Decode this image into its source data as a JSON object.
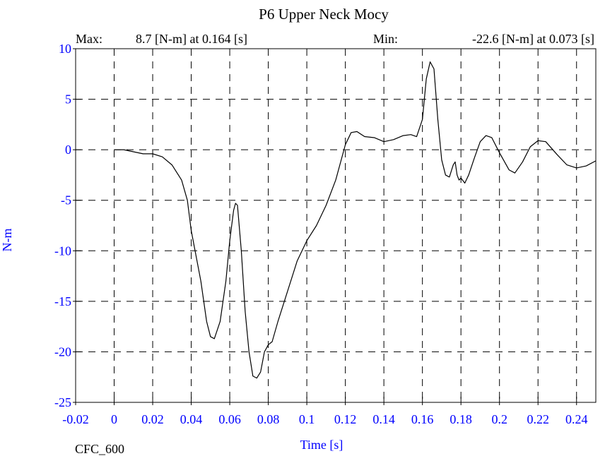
{
  "chart_data": {
    "type": "line",
    "title": "P6 Upper Neck Mocy",
    "max_label": "Max:",
    "max_text": "8.7 [N-m] at 0.164 [s]",
    "min_label": "Min:",
    "min_text": "-22.6 [N-m] at 0.073 [s]",
    "xlabel": "Time [s]",
    "ylabel": "N-m",
    "footer": "CFC_600",
    "color": "#000000",
    "grid": true,
    "xlim": [
      -0.02,
      0.25
    ],
    "ylim": [
      -25,
      10
    ],
    "xticks": [
      -0.02,
      0,
      0.02,
      0.04,
      0.06,
      0.08,
      0.1,
      0.12,
      0.14,
      0.16,
      0.18,
      0.2,
      0.22,
      0.24
    ],
    "yticks": [
      10,
      5,
      0,
      -5,
      -10,
      -15,
      -20,
      -25
    ],
    "x": [
      0,
      0.005,
      0.01,
      0.015,
      0.02,
      0.025,
      0.03,
      0.035,
      0.038,
      0.04,
      0.045,
      0.048,
      0.05,
      0.052,
      0.055,
      0.058,
      0.06,
      0.062,
      0.063,
      0.064,
      0.066,
      0.068,
      0.07,
      0.072,
      0.074,
      0.076,
      0.078,
      0.08,
      0.082,
      0.085,
      0.09,
      0.095,
      0.1,
      0.105,
      0.11,
      0.115,
      0.12,
      0.123,
      0.126,
      0.13,
      0.135,
      0.14,
      0.145,
      0.15,
      0.154,
      0.157,
      0.16,
      0.162,
      0.164,
      0.166,
      0.168,
      0.17,
      0.172,
      0.174,
      0.176,
      0.177,
      0.178,
      0.179,
      0.18,
      0.182,
      0.184,
      0.187,
      0.19,
      0.193,
      0.196,
      0.2,
      0.205,
      0.208,
      0.212,
      0.216,
      0.22,
      0.224,
      0.23,
      0.235,
      0.24,
      0.245,
      0.25
    ],
    "values": [
      0,
      0,
      -0.2,
      -0.4,
      -0.4,
      -0.7,
      -1.5,
      -3,
      -5,
      -8,
      -13,
      -17,
      -18.5,
      -18.7,
      -17,
      -13,
      -9,
      -6,
      -5.3,
      -5.5,
      -10,
      -16,
      -20,
      -22.4,
      -22.6,
      -22,
      -20,
      -19.3,
      -19,
      -17,
      -14,
      -11,
      -9,
      -7.5,
      -5.5,
      -3,
      0.5,
      1.7,
      1.8,
      1.3,
      1.2,
      0.8,
      1.0,
      1.4,
      1.5,
      1.3,
      3,
      7,
      8.7,
      8,
      3,
      -1,
      -2.5,
      -2.7,
      -1.5,
      -1.2,
      -2.5,
      -3,
      -2.8,
      -3.3,
      -2.5,
      -0.8,
      0.8,
      1.4,
      1.2,
      -0.3,
      -2.0,
      -2.3,
      -1.2,
      0.3,
      0.9,
      0.8,
      -0.5,
      -1.5,
      -1.8,
      -1.6,
      -1.1
    ]
  }
}
